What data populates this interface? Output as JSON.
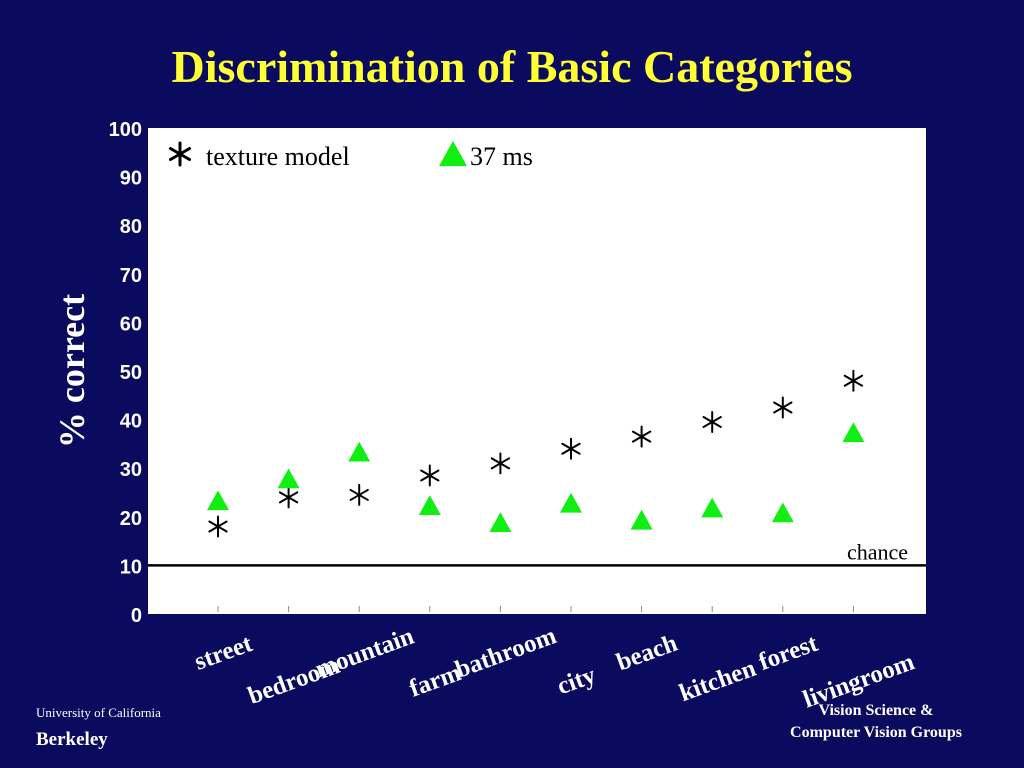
{
  "title": "Discrimination of Basic Categories",
  "footer": {
    "left_line1": "University of California",
    "left_line2": "Berkeley",
    "right_line1": "Vision Science &",
    "right_line2": "Computer Vision Groups"
  },
  "colors": {
    "background": "#0a0a5e",
    "title": "#ffff33",
    "triangle": "#11ee11",
    "asterisk": "#000000"
  },
  "chart_data": {
    "type": "scatter",
    "ylabel": "% correct",
    "ylim": [
      0,
      100
    ],
    "yticks": [
      "0",
      "10",
      "20",
      "30",
      "40",
      "50",
      "60",
      "70",
      "80",
      "90",
      "100"
    ],
    "categories": [
      "street",
      "bedroom",
      "mountain",
      "farm",
      "bathroom",
      "city",
      "beach",
      "kitchen",
      "forest",
      "livingroom"
    ],
    "series": [
      {
        "name": "texture model",
        "marker": "asterisk",
        "values": [
          18,
          24,
          24.5,
          28.5,
          31,
          34,
          36.5,
          39.5,
          42.5,
          48
        ]
      },
      {
        "name": "37 ms",
        "marker": "triangle",
        "values": [
          23,
          27.5,
          33,
          22,
          18.5,
          22.5,
          19,
          21.5,
          20.5,
          37
        ]
      }
    ],
    "reference_line": {
      "value": 10,
      "label": "chance"
    },
    "legend_position": "top-left",
    "grid": false
  }
}
